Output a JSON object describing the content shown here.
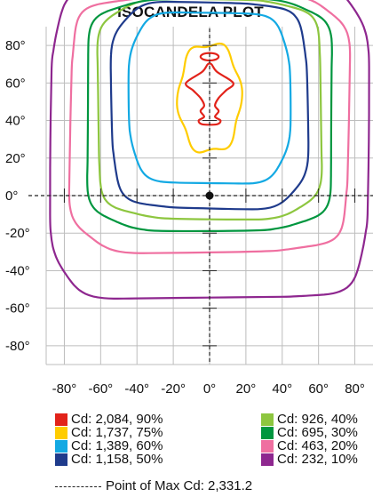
{
  "chart_data": {
    "type": "contour",
    "title": "ISOCANDELA PLOT",
    "x_ticks": [
      "-80°",
      "-60°",
      "-40°",
      "-20°",
      "0°",
      "20°",
      "40°",
      "60°",
      "80°"
    ],
    "y_ticks": [
      "80°",
      "60°",
      "40°",
      "20°",
      "0°",
      "-20°",
      "-40°",
      "-60°",
      "-80°"
    ],
    "xlim": [
      -90,
      90
    ],
    "ylim": [
      -90,
      90
    ],
    "grid": true,
    "series": [
      {
        "name": "Cd: 2,084, 90%",
        "color": "#e2231a"
      },
      {
        "name": "Cd: 1,737, 75%",
        "color": "#ffcc00"
      },
      {
        "name": "Cd: 1,389, 60%",
        "color": "#13a9e3"
      },
      {
        "name": "Cd: 1,158, 50%",
        "color": "#1f3b8c"
      },
      {
        "name": "Cd: 926, 40%",
        "color": "#8dc63f"
      },
      {
        "name": "Cd: 695, 30%",
        "color": "#00963f"
      },
      {
        "name": "Cd: 463, 20%",
        "color": "#ef6fa0"
      },
      {
        "name": "Cd: 232, 10%",
        "color": "#8e278f"
      }
    ],
    "max_point": {
      "label": "Point of Max Cd: 2,331.2",
      "x": 0,
      "y": 0
    }
  }
}
